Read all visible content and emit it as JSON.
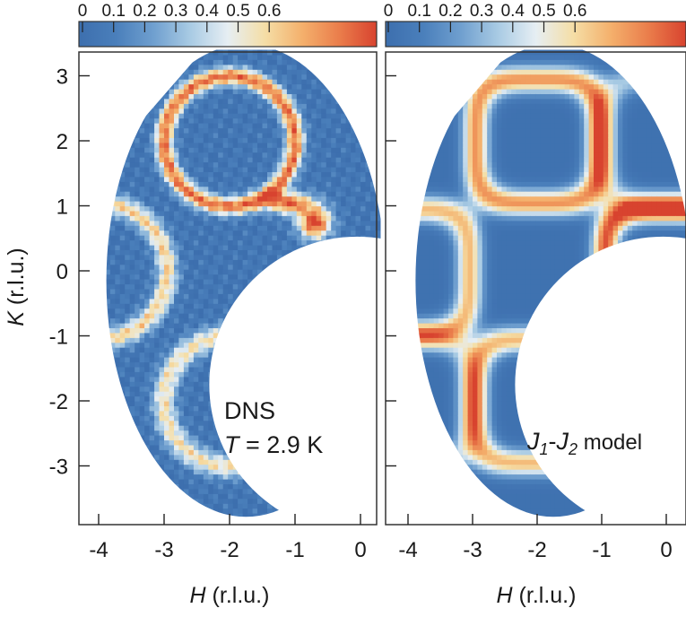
{
  "chart_data": [
    {
      "type": "heatmap",
      "panel": "left",
      "annotation": [
        "DNS",
        "T = 2.9 K"
      ],
      "xlabel": "H (r.l.u.)",
      "ylabel": "K (r.l.u.)",
      "xlim": [
        -4.3,
        0.2
      ],
      "ylim": [
        -3.9,
        3.3
      ],
      "x_ticks": [
        -4,
        -3,
        -2,
        -1,
        0
      ],
      "y_ticks": [
        3,
        2,
        1,
        0,
        -1,
        -2,
        -3
      ],
      "colorbar": {
        "ticks": [
          0,
          0.1,
          0.2,
          0.3,
          0.4,
          0.5,
          0.6
        ],
        "range": [
          0,
          0.68
        ],
        "position": "top"
      },
      "features": [
        {
          "name": "ring",
          "center": [
            -2.0,
            2.0
          ],
          "intensity_max": 0.65
        },
        {
          "name": "ring",
          "center": [
            -4.0,
            0.0
          ],
          "intensity_max": 0.45
        },
        {
          "name": "ring",
          "center": [
            -2.0,
            -2.0
          ],
          "intensity_max": 0.5
        },
        {
          "name": "hot-spot",
          "center": [
            -0.7,
            0.75
          ],
          "intensity_max": 0.68
        },
        {
          "name": "hot-spot",
          "center": [
            -1.1,
            1.05
          ],
          "intensity_max": 0.65
        }
      ]
    },
    {
      "type": "heatmap",
      "panel": "right",
      "annotation": [
        "J1-J2 model"
      ],
      "xlabel": "H (r.l.u.)",
      "ylabel": "",
      "xlim": [
        -4.3,
        0.2
      ],
      "ylim": [
        -3.9,
        3.3
      ],
      "x_ticks": [
        -4,
        -3,
        -2,
        -1,
        0
      ],
      "y_ticks": [
        3,
        2,
        1,
        0,
        -1,
        -2,
        -3
      ],
      "colorbar": {
        "ticks": [
          0,
          0.1,
          0.2,
          0.3,
          0.4,
          0.5,
          0.6
        ],
        "range": [
          0,
          0.68
        ],
        "position": "top"
      },
      "features": [
        {
          "name": "square-ring",
          "center": [
            -2.0,
            2.0
          ],
          "intensity_max": 0.6
        },
        {
          "name": "square-ring",
          "center": [
            0.0,
            0.0
          ],
          "intensity_max": 0.68
        },
        {
          "name": "square-ring",
          "center": [
            -4.0,
            0.0
          ],
          "intensity_max": 0.5
        },
        {
          "name": "square-ring",
          "center": [
            -2.0,
            -2.0
          ],
          "intensity_max": 0.5
        }
      ]
    }
  ],
  "labels": {
    "left_annotation_line1": "DNS",
    "left_annotation_line2_var": "T",
    "left_annotation_line2_rest": " = 2.9 K",
    "right_j1_base": "J",
    "right_j1_sub": "1",
    "right_dash": "-",
    "right_j2_base": "J",
    "right_j2_sub": "2",
    "right_model": " model",
    "xlabel_var": "H",
    "xlabel_unit": " (r.l.u.)",
    "ylabel_var": "K",
    "ylabel_unit": " (r.l.u.)"
  },
  "colors": {
    "colormap": [
      "#3d6fae",
      "#4a7fbb",
      "#6f9fcf",
      "#a9cbe4",
      "#e6eef3",
      "#f5dea6",
      "#f4b06c",
      "#ea7d4b",
      "#d8432f"
    ],
    "background": "#ffffff",
    "frame": "#333333"
  }
}
